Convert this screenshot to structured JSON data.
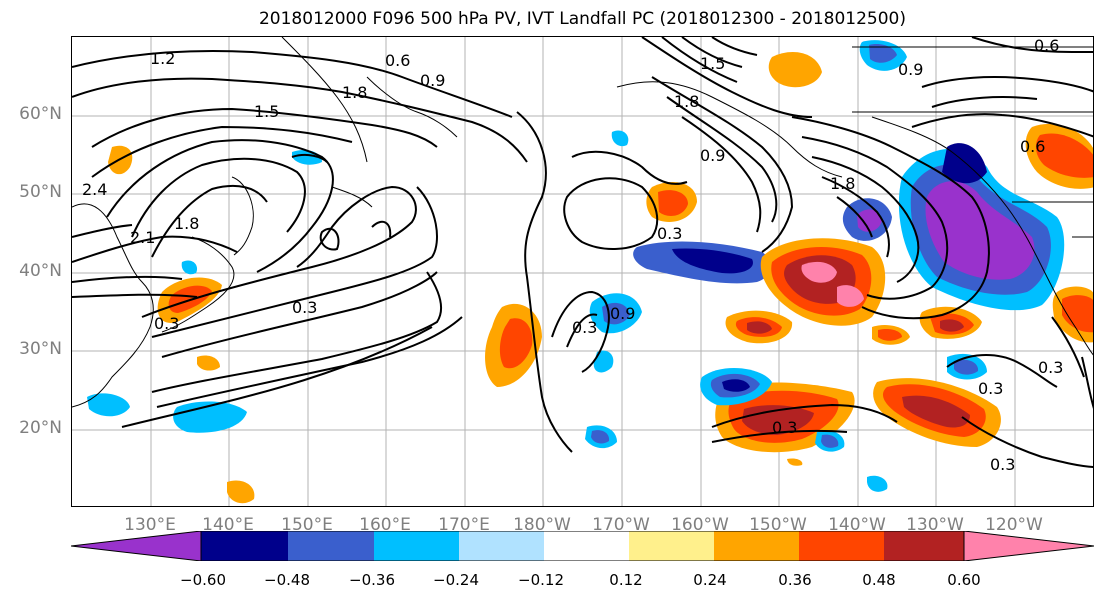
{
  "title": "2018012000 F096 500 hPa PV, IVT Landfall PC (2018012300 - 2018012500)",
  "lat_labels": [
    "60°N",
    "50°N",
    "40°N",
    "30°N",
    "20°N"
  ],
  "lon_labels": [
    "130°E",
    "140°E",
    "150°E",
    "160°E",
    "170°E",
    "180°W",
    "170°W",
    "160°W",
    "150°W",
    "140°W",
    "130°W",
    "120°W"
  ],
  "contour_labels": [
    "1.2",
    "0.6",
    "0.9",
    "1.5",
    "1.8",
    "2.4",
    "2.1",
    "1.8",
    "0.3",
    "0.3",
    "1.5",
    "1.8",
    "0.9",
    "0.3",
    "1.8",
    "0.9",
    "0.3",
    "0.3",
    "0.3",
    "0.6",
    "0.9",
    "0.6",
    "0.3",
    "0.3"
  ],
  "colorbar": {
    "ticks": [
      "−0.60",
      "−0.48",
      "−0.36",
      "−0.24",
      "−0.12",
      "0.12",
      "0.24",
      "0.36",
      "0.48",
      "0.60"
    ],
    "colors": [
      "#9932cc",
      "#00008b",
      "#3a5fcd",
      "#00bfff",
      "#b0e2ff",
      "#ffffff",
      "#fff08c",
      "#ffa500",
      "#ff4500",
      "#b22222",
      "#ff82ab"
    ]
  }
}
